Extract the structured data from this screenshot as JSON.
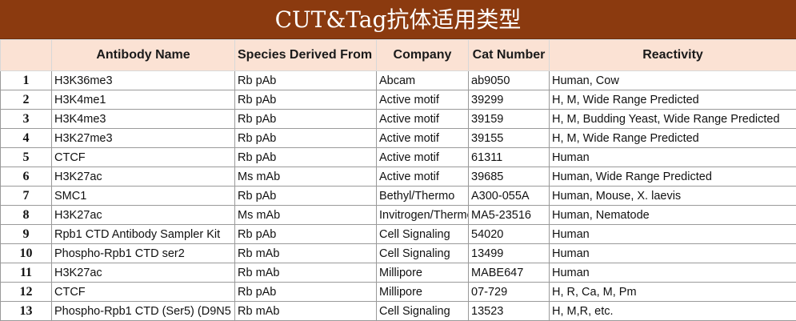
{
  "title": "CUT&Tag抗体适用类型",
  "headers": {
    "num": "",
    "name": "Antibody Name",
    "species": "Species Derived From",
    "company": "Company",
    "cat": "Cat Number",
    "reactivity": "Reactivity"
  },
  "rows": [
    {
      "num": "1",
      "name": "H3K36me3",
      "species": "Rb pAb",
      "company": "Abcam",
      "cat": "ab9050",
      "reactivity": "Human, Cow"
    },
    {
      "num": "2",
      "name": "H3K4me1",
      "species": "Rb pAb",
      "company": "Active motif",
      "cat": "39299",
      "reactivity": "H, M, Wide Range Predicted"
    },
    {
      "num": "3",
      "name": "H3K4me3",
      "species": "Rb pAb",
      "company": "Active motif",
      "cat": "39159",
      "reactivity": "H, M, Budding Yeast, Wide Range Predicted"
    },
    {
      "num": "4",
      "name": "H3K27me3",
      "species": "Rb pAb",
      "company": "Active motif",
      "cat": "39155",
      "reactivity": "H, M, Wide Range Predicted"
    },
    {
      "num": "5",
      "name": "CTCF",
      "species": "Rb pAb",
      "company": "Active motif",
      "cat": "61311",
      "reactivity": "Human"
    },
    {
      "num": "6",
      "name": "H3K27ac",
      "species": "Ms mAb",
      "company": "Active motif",
      "cat": "39685",
      "reactivity": "Human, Wide Range Predicted"
    },
    {
      "num": "7",
      "name": "SMC1",
      "species": "Rb pAb",
      "company": "Bethyl/Thermo",
      "cat": "A300-055A",
      "reactivity": "Human, Mouse, X. laevis"
    },
    {
      "num": "8",
      "name": "H3K27ac",
      "species": "Ms mAb",
      "company": "Invitrogen/Thermo",
      "cat": "MA5-23516",
      "reactivity": "Human, Nematode"
    },
    {
      "num": "9",
      "name": "Rpb1 CTD Antibody Sampler Kit",
      "species": "Rb pAb",
      "company": "Cell Signaling",
      "cat": "54020",
      "reactivity": "Human"
    },
    {
      "num": "10",
      "name": "Phospho-Rpb1 CTD ser2",
      "species": "Rb mAb",
      "company": "Cell Signaling",
      "cat": "13499",
      "reactivity": "Human"
    },
    {
      "num": "11",
      "name": "H3K27ac",
      "species": "Rb mAb",
      "company": "Millipore",
      "cat": "MABE647",
      "reactivity": "Human"
    },
    {
      "num": "12",
      "name": "CTCF",
      "species": "Rb pAb",
      "company": "Millipore",
      "cat": "07-729",
      "reactivity": "H, R, Ca, M, Pm"
    },
    {
      "num": "13",
      "name": "Phospho-Rpb1 CTD (Ser5) (D9N5",
      "species": "Rb mAb",
      "company": "Cell Signaling",
      "cat": "13523",
      "reactivity": "H, M,R, etc."
    }
  ]
}
